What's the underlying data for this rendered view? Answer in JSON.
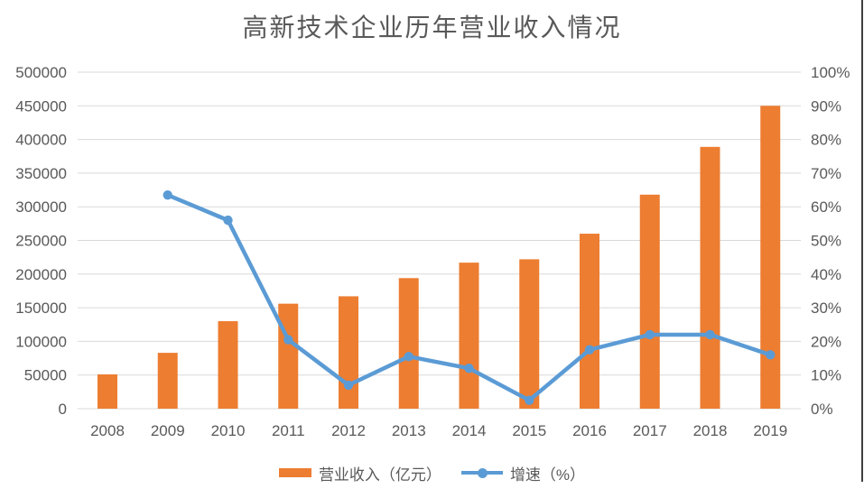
{
  "title": "高新技术企业历年营业收入情况",
  "legend": [
    {
      "label": "营业收入（亿元）",
      "type": "bar",
      "color": "#ED7D31"
    },
    {
      "label": "增速（%）",
      "type": "line",
      "color": "#5B9BD5"
    }
  ],
  "colors": {
    "bar": "#ED7D31",
    "line": "#5B9BD5",
    "gridline": "#D9D9D9",
    "axis_text": "#595959",
    "title_text": "#595959",
    "right_border": "#3f3f3f"
  },
  "chart_data": {
    "type": "bar",
    "subtype": "combo-bar-line-dual-axis",
    "title": "高新技术企业历年营业收入情况",
    "categories": [
      "2008",
      "2009",
      "2010",
      "2011",
      "2012",
      "2013",
      "2014",
      "2015",
      "2016",
      "2017",
      "2018",
      "2019"
    ],
    "series": [
      {
        "name": "营业收入（亿元）",
        "type": "bar",
        "axis": "left",
        "color": "#ED7D31",
        "values": [
          51000,
          83000,
          130000,
          156000,
          167000,
          194000,
          217000,
          222000,
          260000,
          318000,
          389000,
          450000
        ]
      },
      {
        "name": "增速（%）",
        "type": "line",
        "axis": "right",
        "color": "#5B9BD5",
        "values": [
          null,
          63.5,
          56,
          20.5,
          7,
          15.5,
          12,
          2.5,
          17.5,
          22,
          22,
          16
        ]
      }
    ],
    "left_axis": {
      "min": 0,
      "max": 500000,
      "step": 50000,
      "tick_labels": [
        "0",
        "50000",
        "100000",
        "150000",
        "200000",
        "250000",
        "300000",
        "350000",
        "400000",
        "450000",
        "500000"
      ]
    },
    "right_axis": {
      "min": 0,
      "max": 100,
      "step": 10,
      "tick_labels": [
        "0%",
        "10%",
        "20%",
        "30%",
        "40%",
        "50%",
        "60%",
        "70%",
        "80%",
        "90%",
        "100%"
      ]
    },
    "grid": true,
    "legend_position": "bottom"
  }
}
